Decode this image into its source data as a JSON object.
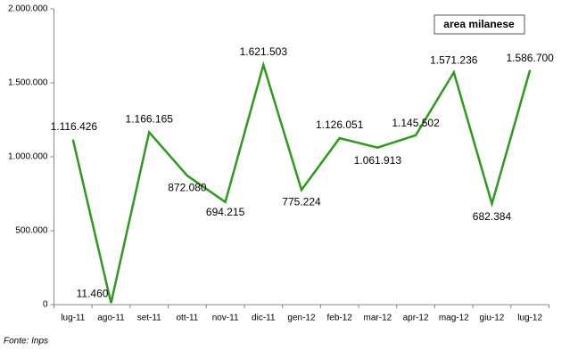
{
  "chart_data": {
    "type": "line",
    "annotation": "area milanese",
    "source": "Fonte: Inps",
    "categories": [
      "lug-11",
      "ago-11",
      "set-11",
      "ott-11",
      "nov-11",
      "dic-11",
      "gen-12",
      "feb-12",
      "mar-12",
      "apr-12",
      "mag-12",
      "giu-12",
      "lug-12"
    ],
    "values": [
      1116426,
      11460,
      1166165,
      872080,
      694215,
      1621503,
      775224,
      1126051,
      1061913,
      1145502,
      1571236,
      682384,
      1586700
    ],
    "value_labels": [
      "1.116.426",
      "11.460",
      "1.166.165",
      "872.080",
      "694.215",
      "1.621.503",
      "775.224",
      "1.126.051",
      "1.061.913",
      "1.145.502",
      "1.571.236",
      "682.384",
      "1.586.700"
    ],
    "color": "#2e9a1d",
    "ylim": [
      0,
      2000000
    ],
    "yticks": [
      0,
      {
        "value": 500000,
        "label": "500.000"
      },
      {
        "value": 1000000,
        "label": "1.000.000"
      },
      {
        "value": 1500000,
        "label": "1.500.000"
      },
      {
        "value": 2000000,
        "label": "2.000.000"
      }
    ],
    "grid": false
  }
}
